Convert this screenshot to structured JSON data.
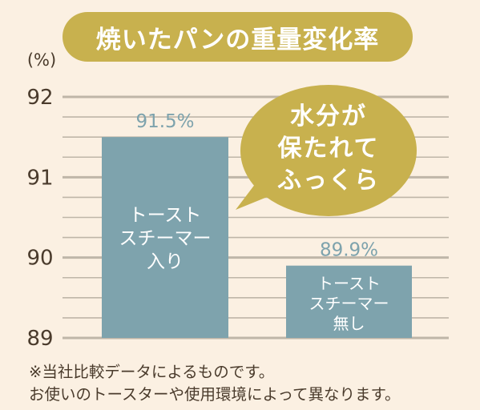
{
  "chart_data": {
    "type": "bar",
    "title": "焼いたパンの重量変化率",
    "ylabel": "(%)",
    "ylim": [
      89,
      92
    ],
    "yticks": [
      "92",
      "91",
      "90",
      "89"
    ],
    "categories": [
      "トースト\nスチーマー\n入り",
      "トースト\nスチーマー\n無し"
    ],
    "values": [
      91.5,
      89.9
    ],
    "value_labels": [
      "91.5%",
      "89.9%"
    ],
    "grid": true,
    "annotation": "水分が\n保たれて\nふっくら",
    "colors": {
      "bar": "#7ea3ad",
      "value_label": "#7ea3ad",
      "grid": "#bfb6a8",
      "bubble": "#c8b14e",
      "title_bg": "#c8b14e"
    }
  },
  "footnotes": [
    "※当社比較データによるものです。",
    "お使いのトースターや使用環境によって異なります。"
  ]
}
